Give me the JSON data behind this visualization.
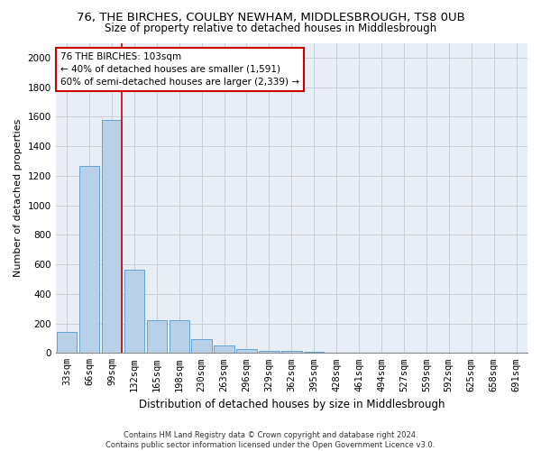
{
  "title1": "76, THE BIRCHES, COULBY NEWHAM, MIDDLESBROUGH, TS8 0UB",
  "title2": "Size of property relative to detached houses in Middlesbrough",
  "xlabel": "Distribution of detached houses by size in Middlesbrough",
  "ylabel": "Number of detached properties",
  "footnote": "Contains HM Land Registry data © Crown copyright and database right 2024.\nContains public sector information licensed under the Open Government Licence v3.0.",
  "bar_labels": [
    "33sqm",
    "66sqm",
    "99sqm",
    "132sqm",
    "165sqm",
    "198sqm",
    "230sqm",
    "263sqm",
    "296sqm",
    "329sqm",
    "362sqm",
    "395sqm",
    "428sqm",
    "461sqm",
    "494sqm",
    "527sqm",
    "559sqm",
    "592sqm",
    "625sqm",
    "658sqm",
    "691sqm"
  ],
  "bar_values": [
    140,
    1265,
    1575,
    565,
    220,
    220,
    95,
    50,
    28,
    15,
    15,
    8,
    0,
    0,
    0,
    0,
    0,
    0,
    0,
    0,
    0
  ],
  "bar_color": "#b8d0e8",
  "bar_edge_color": "#5599cc",
  "annotation_text": "76 THE BIRCHES: 103sqm\n← 40% of detached houses are smaller (1,591)\n60% of semi-detached houses are larger (2,339) →",
  "annotation_box_color": "#ffffff",
  "annotation_box_edge": "#cc0000",
  "ylim": [
    0,
    2100
  ],
  "yticks": [
    0,
    200,
    400,
    600,
    800,
    1000,
    1200,
    1400,
    1600,
    1800,
    2000
  ],
  "grid_color": "#c8d0d8",
  "bg_color": "#e8eef5",
  "title1_fontsize": 9.5,
  "title2_fontsize": 8.5,
  "xlabel_fontsize": 8.5,
  "ylabel_fontsize": 8,
  "tick_fontsize": 7.5,
  "annot_fontsize": 7.5,
  "footnote_fontsize": 6
}
